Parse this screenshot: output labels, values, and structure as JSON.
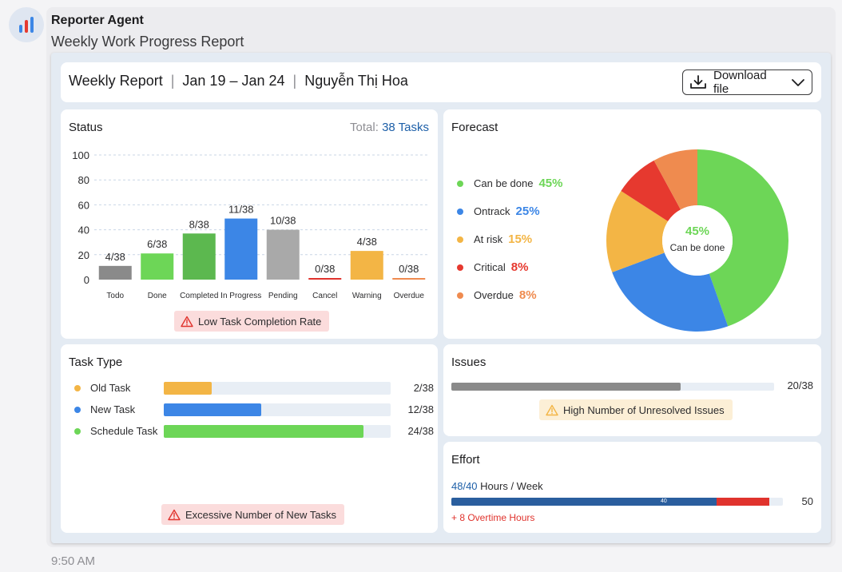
{
  "agent": {
    "name": "Reporter Agent",
    "message": "Weekly Work Progress Report",
    "time": "9:50 AM"
  },
  "header": {
    "title": "Weekly Report",
    "date_range": "Jan 19 – Jan 24",
    "person": "Nguyễn Thị Hoa",
    "download_label": "Download file"
  },
  "status": {
    "title": "Status",
    "total_label": "Total:",
    "total_value": "38 Tasks",
    "warning": "Low Task Completion Rate"
  },
  "forecast": {
    "title": "Forecast",
    "center_pct": "45%",
    "center_label": "Can be done",
    "items": [
      {
        "label": "Can be done",
        "pct": "45%",
        "color": "#6dd657"
      },
      {
        "label": "Ontrack",
        "pct": "25%",
        "color": "#3c86e6"
      },
      {
        "label": "At risk",
        "pct": "15%",
        "color": "#f3b545"
      },
      {
        "label": "Critical",
        "pct": "8%",
        "color": "#e6392f"
      },
      {
        "label": "Overdue",
        "pct": "8%",
        "color": "#ef8b4f"
      }
    ]
  },
  "task_type": {
    "title": "Task Type",
    "warning": "Excessive Number of New Tasks",
    "rows": [
      {
        "label": "Old Task",
        "value": "2/38",
        "fraction": 0.21,
        "color": "#f3b545"
      },
      {
        "label": "New Task",
        "value": "12/38",
        "fraction": 0.43,
        "color": "#3c86e6"
      },
      {
        "label": "Schedule Task",
        "value": "24/38",
        "fraction": 0.88,
        "color": "#6dd657"
      }
    ]
  },
  "issues": {
    "title": "Issues",
    "value": "20/38",
    "fraction": 0.71,
    "warning": "High Number of Unresolved Issues"
  },
  "effort": {
    "title": "Effort",
    "hours": "48/40",
    "unit": "Hours / Week",
    "max_label": "50",
    "bar_marker": "40",
    "overtime": "+ 8 Overtime Hours",
    "logged": 48,
    "target": 40,
    "max": 50
  },
  "chart_data": {
    "type": "bar",
    "title": "Status",
    "categories": [
      "Todo",
      "Done",
      "Completed",
      "In Progress",
      "Pending",
      "Cancel",
      "Warning",
      "Overdue"
    ],
    "values": [
      11,
      21,
      37,
      49,
      40,
      1,
      23,
      1
    ],
    "data_labels": [
      "4/38",
      "6/38",
      "8/38",
      "11/38",
      "10/38",
      "0/38",
      "4/38",
      "0/38"
    ],
    "colors": [
      "#8a8a8a",
      "#6dd657",
      "#5cb84f",
      "#3c86e6",
      "#a9a9a9",
      "#e0332d",
      "#f3b545",
      "#ef8b4f"
    ],
    "ylim": [
      0,
      100
    ],
    "yticks": [
      0,
      20,
      40,
      60,
      80,
      100
    ],
    "grid": true
  }
}
